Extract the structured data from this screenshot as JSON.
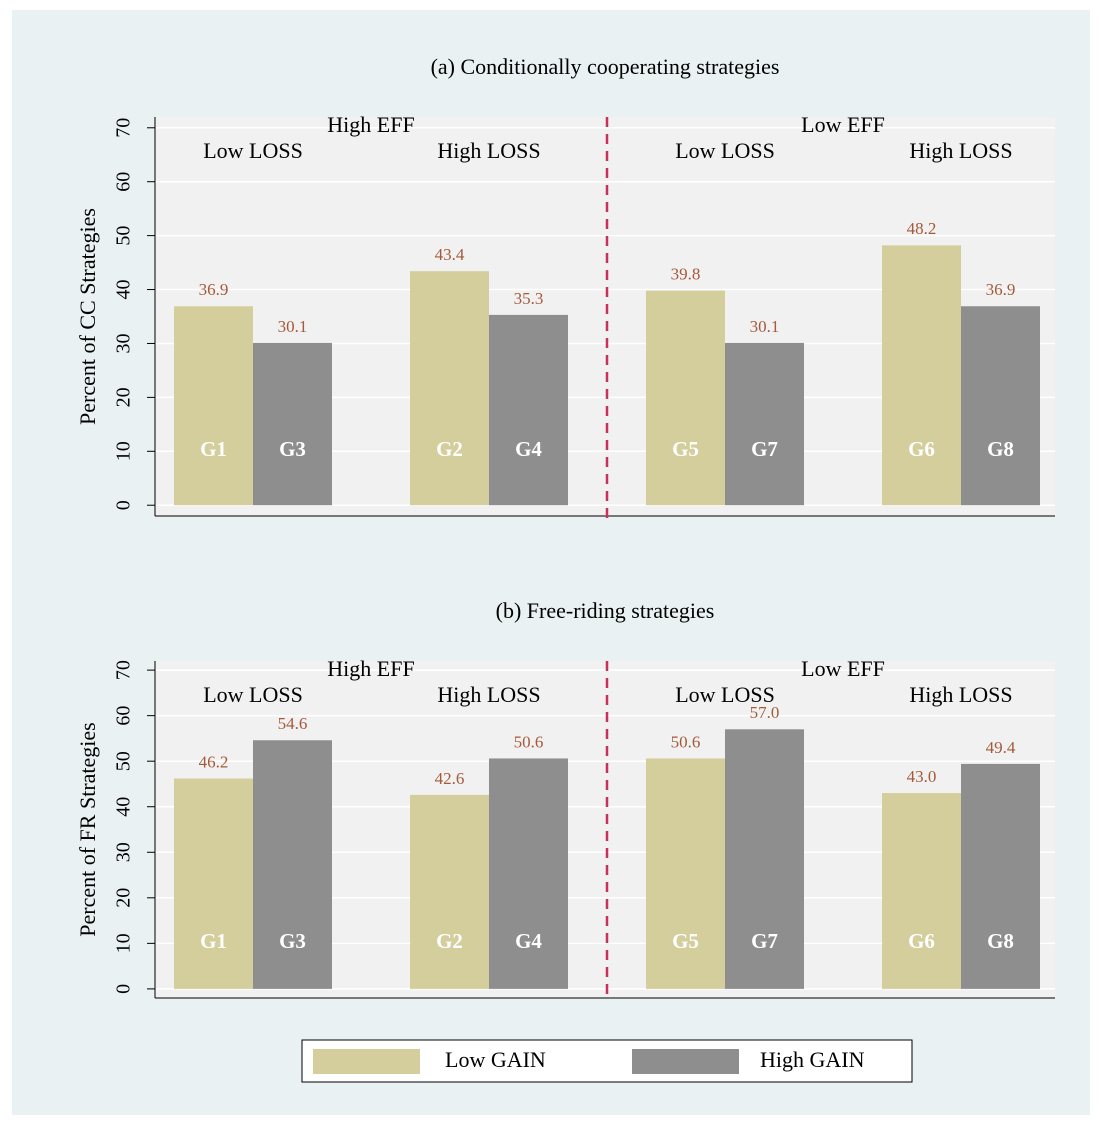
{
  "chart_data": [
    {
      "type": "bar",
      "title": "(a) Conditionally cooperating strategies",
      "y_label": "Percent of CC Strategies",
      "panels": [
        "High EFF",
        "Low EFF"
      ],
      "categories": [
        "Low LOSS",
        "High LOSS",
        "Low LOSS",
        "High LOSS"
      ],
      "series": [
        {
          "name": "Low GAIN",
          "color": "#d4cd9c",
          "values": [
            36.9,
            43.4,
            39.8,
            48.2
          ],
          "value_labels": [
            "36.9",
            "43.4",
            "39.8",
            "48.2"
          ],
          "bar_labels": [
            "G1",
            "G2",
            "G5",
            "G6"
          ]
        },
        {
          "name": "High GAIN",
          "color": "#8e8e8e",
          "values": [
            30.1,
            35.3,
            30.1,
            36.9
          ],
          "value_labels": [
            "30.1",
            "35.3",
            "30.1",
            "36.9"
          ],
          "bar_labels": [
            "G3",
            "G4",
            "G7",
            "G8"
          ]
        }
      ],
      "ylim": [
        -2,
        72
      ],
      "yticks": [
        0,
        10,
        20,
        30,
        40,
        50,
        60,
        70
      ],
      "grid": true
    },
    {
      "type": "bar",
      "title": "(b) Free-riding strategies",
      "y_label": "Percent of FR Strategies",
      "panels": [
        "High EFF",
        "Low EFF"
      ],
      "categories": [
        "Low LOSS",
        "High LOSS",
        "Low LOSS",
        "High LOSS"
      ],
      "series": [
        {
          "color": "#d4cd9c",
          "values": [
            46.2,
            42.6,
            50.6,
            43.0
          ],
          "value_labels": [
            "46.2",
            "42.6",
            "50.6",
            "43.0"
          ],
          "bar_labels": [
            "G1",
            "G2",
            "G5",
            "G6"
          ]
        },
        {
          "color": "#8e8e8e",
          "values": [
            54.6,
            50.6,
            57.0,
            49.4
          ],
          "value_labels": [
            "54.6",
            "50.6",
            "57.0",
            "49.4"
          ],
          "bar_labels": [
            "G3",
            "G4",
            "G7",
            "G8"
          ]
        }
      ],
      "ylim": [
        -2,
        72
      ],
      "yticks": [
        0,
        10,
        20,
        30,
        40,
        50,
        60,
        70
      ],
      "grid": true
    }
  ]
}
